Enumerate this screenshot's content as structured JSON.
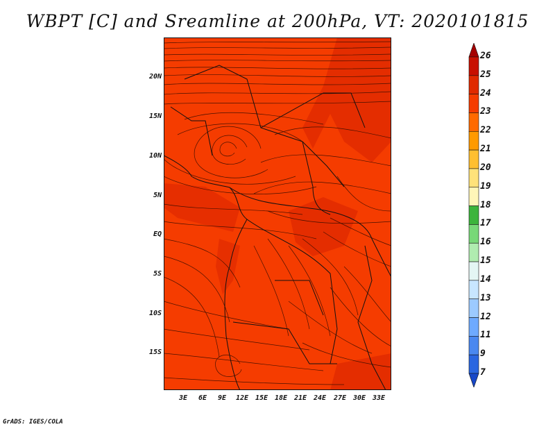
{
  "title": "WBPT [C] and Sreamline at 200hPa, VT: 2020101815",
  "map": {
    "lat_labels": [
      "20N",
      "15N",
      "10N",
      "5N",
      "EQ",
      "5S",
      "10S",
      "15S"
    ],
    "lon_labels": [
      "3E",
      "6E",
      "9E",
      "12E",
      "15E",
      "18E",
      "21E",
      "24E",
      "27E",
      "30E",
      "33E"
    ],
    "fill_colors": {
      "base": "#f53c00",
      "warm": "#e02a00",
      "mid": "#ff4a10"
    }
  },
  "colorbar": {
    "labels": [
      "26",
      "25",
      "24",
      "23",
      "22",
      "21",
      "20",
      "19",
      "18",
      "17",
      "16",
      "15",
      "14",
      "13",
      "12",
      "11",
      "9",
      "7"
    ],
    "colors": [
      "#a50000",
      "#c81000",
      "#e02a00",
      "#f53c00",
      "#ff6a00",
      "#ff9a00",
      "#ffbf30",
      "#ffe27a",
      "#fff6b8",
      "#3cb43c",
      "#78d878",
      "#b0ecb0",
      "#e4f6f4",
      "#c8e6ff",
      "#9ccaff",
      "#6eaaff",
      "#4a88f0",
      "#2a66e0",
      "#1848c8"
    ]
  },
  "credit": "GrADS: IGES/COLA"
}
